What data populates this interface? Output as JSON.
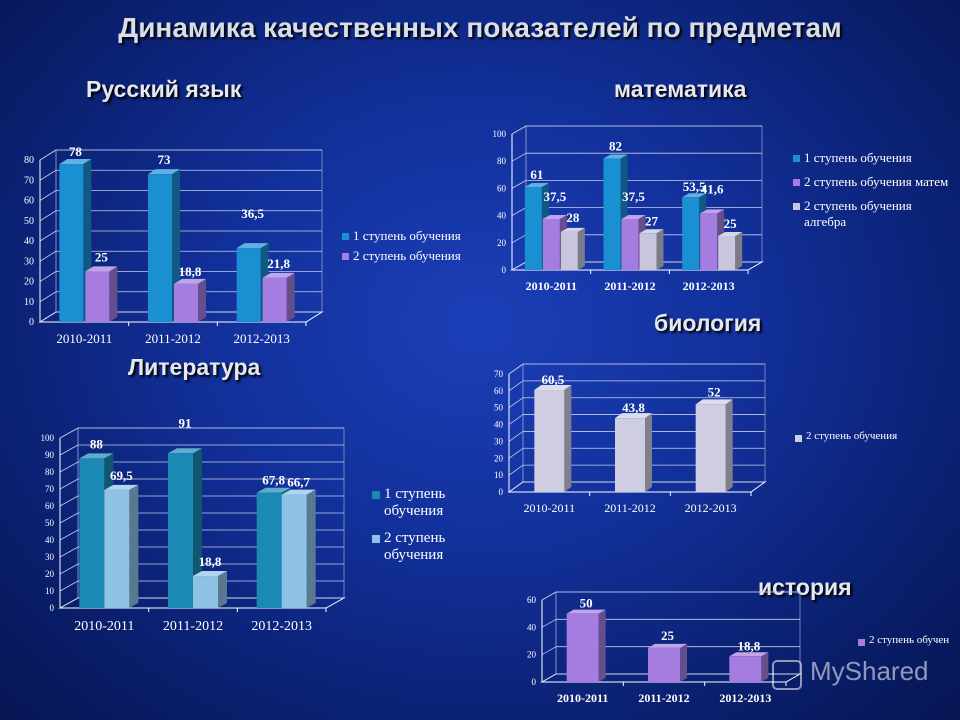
{
  "title": "Динамика качественных показателей  по предметам",
  "subjects": {
    "russian": "Русский язык",
    "math": "математика",
    "literature": "Литература",
    "biology": "биология",
    "history": "история"
  },
  "watermark": "MyShared",
  "colors": {
    "dark_blue": "#1a8fd2",
    "teal": "#1a8ab5",
    "purple": "#a57de0",
    "gray": "#c8c6dc",
    "light_blue": "#8fc3e6",
    "bio_gray": "#cfcde2",
    "history_purple": "#a57de0"
  },
  "chart_data": [
    {
      "id": "russian",
      "type": "bar",
      "categories": [
        "2010-2011",
        "2011-2012",
        "2012-2013"
      ],
      "ylim": [
        0,
        80
      ],
      "yticks": [
        "0",
        "10",
        "20",
        "30",
        "40",
        "50",
        "60",
        "70",
        "80"
      ],
      "series": [
        {
          "name": "1 ступень обучения",
          "values": [
            78,
            73,
            36.5
          ],
          "labels": [
            "78",
            "73",
            "36,5"
          ]
        },
        {
          "name": "2 ступень обучения",
          "values": [
            25,
            18.8,
            21.8
          ],
          "labels": [
            "25",
            "18,8",
            "21,8"
          ]
        }
      ],
      "legend": "right"
    },
    {
      "id": "math",
      "type": "bar",
      "categories": [
        "2010-2011",
        "2011-2012",
        "2012-2013"
      ],
      "ylim": [
        0,
        100
      ],
      "yticks": [
        "0",
        "20",
        "40",
        "60",
        "80",
        "100"
      ],
      "series": [
        {
          "name": "1 ступень обучения",
          "values": [
            61,
            82,
            53.5
          ],
          "labels": [
            "61",
            "82",
            "53,5"
          ]
        },
        {
          "name": "2 ступень обучения матем",
          "values": [
            37.5,
            37.5,
            41.6
          ],
          "labels": [
            "37,5",
            "37,5",
            "41,6"
          ]
        },
        {
          "name": "2 ступень обучения алгебра",
          "values": [
            28,
            27,
            25
          ],
          "labels": [
            "28",
            "27",
            "25"
          ]
        }
      ],
      "legend": "right"
    },
    {
      "id": "literature",
      "type": "bar",
      "categories": [
        "2010-2011",
        "2011-2012",
        "2012-2013"
      ],
      "ylim": [
        0,
        100
      ],
      "yticks": [
        "0",
        "10",
        "20",
        "30",
        "40",
        "50",
        "60",
        "70",
        "80",
        "90",
        "100"
      ],
      "series": [
        {
          "name": "1 ступень обучения",
          "values": [
            88,
            91,
            67.8
          ],
          "labels": [
            "88",
            "91",
            "67,8"
          ]
        },
        {
          "name": "2 ступень обучения",
          "values": [
            69.5,
            18.8,
            66.7
          ],
          "labels": [
            "69,5",
            "18,8",
            "66,7"
          ]
        }
      ],
      "legend": "right"
    },
    {
      "id": "biology",
      "type": "bar",
      "categories": [
        "2010-2011",
        "2011-2012",
        "2012-2013"
      ],
      "ylim": [
        0,
        70
      ],
      "yticks": [
        "0",
        "10",
        "20",
        "30",
        "40",
        "50",
        "60",
        "70"
      ],
      "series": [
        {
          "name": "2 ступень обучения",
          "values": [
            60.5,
            43.8,
            52
          ],
          "labels": [
            "60,5",
            "43,8",
            "52"
          ]
        }
      ],
      "legend": "right"
    },
    {
      "id": "history",
      "type": "bar",
      "categories": [
        "2010-2011",
        "2011-2012",
        "2012-2013"
      ],
      "ylim": [
        0,
        60
      ],
      "yticks": [
        "0",
        "20",
        "40",
        "60"
      ],
      "series": [
        {
          "name": "2 ступень обучен",
          "values": [
            50,
            25,
            18.8
          ],
          "labels": [
            "50",
            "25",
            "18,8"
          ]
        }
      ],
      "legend": "right"
    }
  ]
}
